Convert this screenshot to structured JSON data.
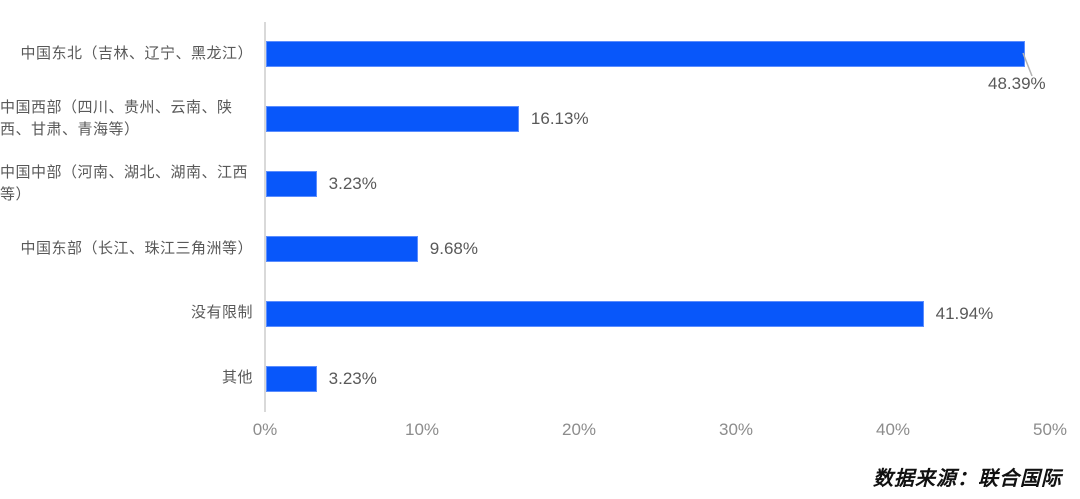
{
  "chart_data": {
    "type": "bar",
    "orientation": "horizontal",
    "categories": [
      "中国东北（吉林、辽宁、黑龙江）",
      "中国西部（四川、贵州、云南、陕西、甘肃、青海等）",
      "中国中部（河南、湖北、湖南、江西等）",
      "中国东部（长江、珠江三角洲等）",
      "没有限制",
      "其他"
    ],
    "values": [
      48.39,
      16.13,
      3.23,
      9.68,
      41.94,
      3.23
    ],
    "value_labels": [
      "48.39%",
      "16.13%",
      "3.23%",
      "9.68%",
      "41.94%",
      "3.23%"
    ],
    "xlim": [
      0,
      50
    ],
    "x_ticks": [
      "0%",
      "10%",
      "20%",
      "30%",
      "40%",
      "50%"
    ],
    "grid": false,
    "legend": false,
    "bar_color": "#0857fa",
    "bar_border_color": "#5b8dfe",
    "axis_line_color": "#d9d9d9",
    "label_color": "#595959",
    "tick_color": "#8c8c8c"
  },
  "source_note": "数据来源：联合国际"
}
